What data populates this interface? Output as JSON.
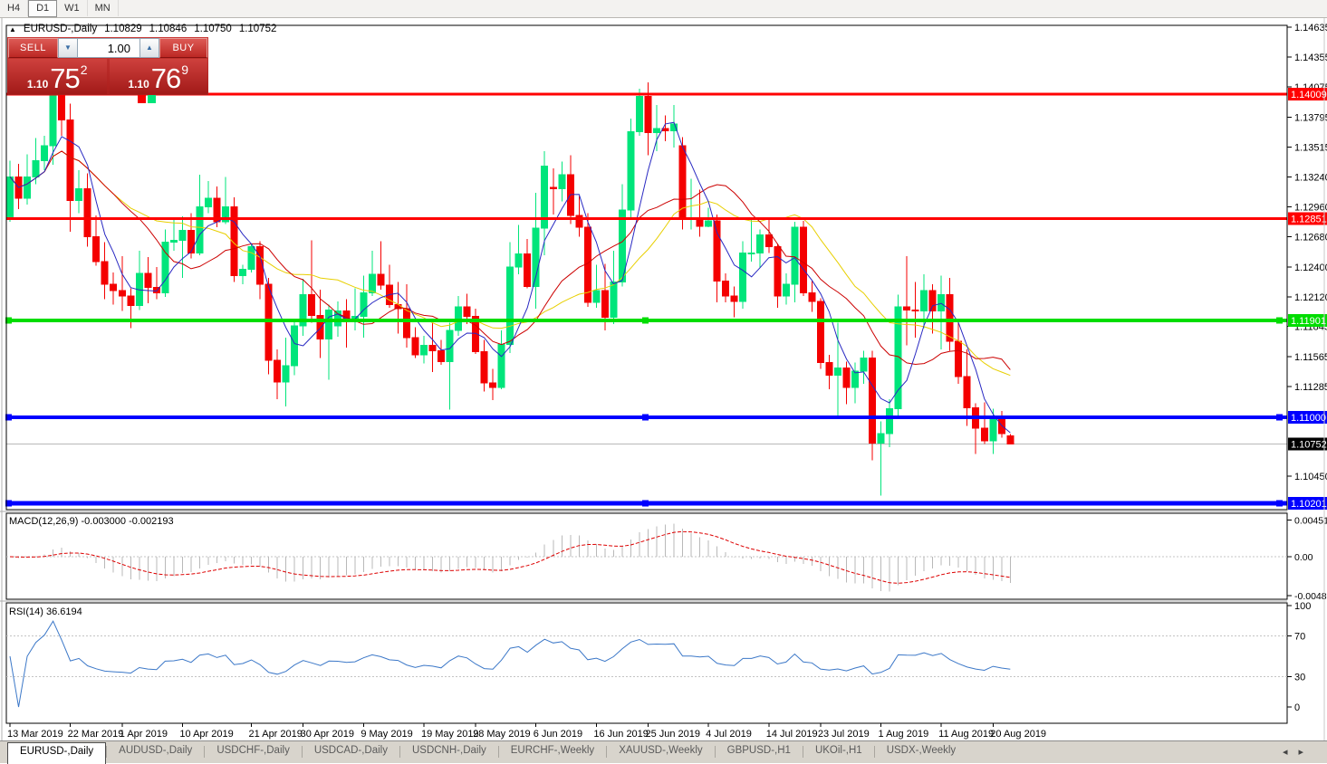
{
  "toolbar": {
    "timeframes": [
      "H4",
      "D1",
      "W1",
      "MN"
    ],
    "active_timeframe": "D1"
  },
  "info_line": {
    "collapse_icon": "▲",
    "symbol": "EURUSD-,Daily",
    "open": "1.10829",
    "high": "1.10846",
    "low": "1.10750",
    "close": "1.10752"
  },
  "trade_widget": {
    "sell_label": "SELL",
    "buy_label": "BUY",
    "volume": "1.00",
    "spin_down_icon": "▼",
    "spin_up_icon": "▲",
    "sell_price": {
      "prefix": "1.10",
      "big": "75",
      "sup": "2"
    },
    "buy_price": {
      "prefix": "1.10",
      "big": "76",
      "sup": "9"
    }
  },
  "indicator_panels": {
    "macd": {
      "title": "MACD(12,26,9)",
      "value_main": "-0.003000",
      "value_signal": "-0.002193",
      "params": {
        "fast": 12,
        "slow": 26,
        "signal": 9
      },
      "scale": [
        {
          "value": 0.004517,
          "label": "0.004517"
        },
        {
          "value": 0,
          "label": "0.00"
        },
        {
          "value": -0.004806,
          "label": "-0.004806"
        }
      ]
    },
    "rsi": {
      "title": "RSI(14)",
      "value": "36.6194",
      "period": 14,
      "levels": [
        70,
        30
      ],
      "scale": [
        {
          "value": 100,
          "label": "100"
        },
        {
          "value": 70,
          "label": "70"
        },
        {
          "value": 30,
          "label": "30"
        },
        {
          "value": 0,
          "label": "0"
        }
      ]
    }
  },
  "tab_bar": {
    "tabs": [
      "EURUSD-,Daily",
      "AUDUSD-,Daily",
      "USDCHF-,Daily",
      "USDCAD-,Daily",
      "USDCNH-,Daily",
      "EURCHF-,Weekly",
      "XAUUSD-,Weekly",
      "GBPUSD-,H1",
      "UKOil-,H1",
      "USDX-,Weekly"
    ],
    "active_tab": "EURUSD-,Daily",
    "scroll_left_icon": "◂",
    "scroll_right_icon": "▸"
  },
  "chart_data": {
    "type": "candlestick",
    "title": "EURUSD-,Daily",
    "y_axis": {
      "min": 1.1014,
      "max": 1.1465,
      "ticks": [
        {
          "value": 1.14635,
          "label": "1.14635"
        },
        {
          "value": 1.14355,
          "label": "1.14355"
        },
        {
          "value": 1.14075,
          "label": "1.14075"
        },
        {
          "value": 1.13795,
          "label": "1.13795"
        },
        {
          "value": 1.13515,
          "label": "1.13515"
        },
        {
          "value": 1.1324,
          "label": "1.13240"
        },
        {
          "value": 1.1296,
          "label": "1.12960"
        },
        {
          "value": 1.1268,
          "label": "1.12680"
        },
        {
          "value": 1.124,
          "label": "1.12400"
        },
        {
          "value": 1.1212,
          "label": "1.12120"
        },
        {
          "value": 1.11845,
          "label": "1.11845"
        },
        {
          "value": 1.11565,
          "label": "1.11565"
        },
        {
          "value": 1.11285,
          "label": "1.11285"
        },
        {
          "value": 1.1045,
          "label": "1.10450"
        }
      ]
    },
    "x_ticks": [
      {
        "i": 0,
        "label": "13 Mar 2019"
      },
      {
        "i": 7,
        "label": "22 Mar 2019"
      },
      {
        "i": 13,
        "label": "1 Apr 2019"
      },
      {
        "i": 20,
        "label": "10 Apr 2019"
      },
      {
        "i": 28,
        "label": "21 Apr 2019"
      },
      {
        "i": 34,
        "label": "30 Apr 2019"
      },
      {
        "i": 41,
        "label": "9 May 2019"
      },
      {
        "i": 48,
        "label": "19 May 2019"
      },
      {
        "i": 54,
        "label": "28 May 2019"
      },
      {
        "i": 61,
        "label": "6 Jun 2019"
      },
      {
        "i": 68,
        "label": "16 Jun 2019"
      },
      {
        "i": 74,
        "label": "25 Jun 2019"
      },
      {
        "i": 81,
        "label": "4 Jul 2019"
      },
      {
        "i": 88,
        "label": "14 Jul 2019"
      },
      {
        "i": 94,
        "label": "23 Jul 2019"
      },
      {
        "i": 101,
        "label": "1 Aug 2019"
      },
      {
        "i": 108,
        "label": "11 Aug 2019"
      },
      {
        "i": 114,
        "label": "20 Aug 2019"
      }
    ],
    "hlines": [
      {
        "price": 1.14009,
        "label": "1.14009",
        "color": "#ff0000",
        "width": 3,
        "handles": false
      },
      {
        "price": 1.12851,
        "label": "1.12851",
        "color": "#ff0000",
        "width": 3,
        "handles": false
      },
      {
        "price": 1.11901,
        "label": "1.11901",
        "color": "#00dd00",
        "width": 4,
        "handles": true
      },
      {
        "price": 1.11,
        "label": "1.11000",
        "color": "#0000ff",
        "width": 4,
        "handles": true
      },
      {
        "price": 1.10201,
        "label": "1.10201",
        "color": "#0000ff",
        "width": 5,
        "handles": true
      }
    ],
    "current_price": {
      "value": 1.10752,
      "label": "1.10752"
    },
    "moving_averages": [
      {
        "name": "slow",
        "period": 21,
        "color": "#e8cf00"
      },
      {
        "name": "medium",
        "period": 13,
        "color": "#cc0000"
      },
      {
        "name": "fast",
        "period": 5,
        "color": "#2828c2"
      }
    ],
    "colors": {
      "up": "#00e57b",
      "down": "#f40000",
      "macd_histogram": "#b9b9b9",
      "macd_signal": "#dd0000",
      "rsi_line": "#3c78c8",
      "current_price_line": "#b8b8b8",
      "grid_dash": "#c4c4c4"
    },
    "macd_range": {
      "max": 0.0048,
      "min": -0.0048
    },
    "rsi_range": {
      "max": 100,
      "min": 0
    },
    "candles": [
      [
        1.1285,
        1.1339,
        1.1282,
        1.1324
      ],
      [
        1.1324,
        1.1336,
        1.1294,
        1.1304
      ],
      [
        1.1304,
        1.1345,
        1.1298,
        1.1324
      ],
      [
        1.1324,
        1.136,
        1.1317,
        1.1339
      ],
      [
        1.1339,
        1.1362,
        1.133,
        1.1353
      ],
      [
        1.1353,
        1.1448,
        1.1335,
        1.1414
      ],
      [
        1.1414,
        1.1438,
        1.1362,
        1.1377
      ],
      [
        1.1377,
        1.1392,
        1.1273,
        1.1302
      ],
      [
        1.1302,
        1.133,
        1.129,
        1.1313
      ],
      [
        1.1313,
        1.1327,
        1.1259,
        1.1268
      ],
      [
        1.1268,
        1.1288,
        1.1241,
        1.1245
      ],
      [
        1.1245,
        1.1263,
        1.121,
        1.1224
      ],
      [
        1.1224,
        1.1235,
        1.1205,
        1.1218
      ],
      [
        1.1218,
        1.125,
        1.1199,
        1.1213
      ],
      [
        1.1213,
        1.122,
        1.1183,
        1.1204
      ],
      [
        1.1204,
        1.1255,
        1.12,
        1.1234
      ],
      [
        1.1234,
        1.1249,
        1.1206,
        1.1221
      ],
      [
        1.1221,
        1.124,
        1.121,
        1.1216
      ],
      [
        1.1216,
        1.1275,
        1.1212,
        1.1263
      ],
      [
        1.1263,
        1.1285,
        1.1255,
        1.1265
      ],
      [
        1.1265,
        1.1287,
        1.123,
        1.1274
      ],
      [
        1.1274,
        1.129,
        1.1248,
        1.1253
      ],
      [
        1.1253,
        1.1326,
        1.1251,
        1.1296
      ],
      [
        1.1296,
        1.132,
        1.129,
        1.1304
      ],
      [
        1.1304,
        1.1315,
        1.1277,
        1.1282
      ],
      [
        1.1282,
        1.1324,
        1.128,
        1.1296
      ],
      [
        1.1296,
        1.1305,
        1.1226,
        1.1232
      ],
      [
        1.1232,
        1.1242,
        1.1224,
        1.1238
      ],
      [
        1.1238,
        1.1262,
        1.1235,
        1.1259
      ],
      [
        1.1259,
        1.1264,
        1.121,
        1.1224
      ],
      [
        1.1224,
        1.123,
        1.114,
        1.1153
      ],
      [
        1.1153,
        1.1163,
        1.1117,
        1.1133
      ],
      [
        1.1133,
        1.1174,
        1.111,
        1.1148
      ],
      [
        1.1148,
        1.1191,
        1.1139,
        1.1185
      ],
      [
        1.1185,
        1.1229,
        1.1176,
        1.1214
      ],
      [
        1.1214,
        1.1265,
        1.1188,
        1.1195
      ],
      [
        1.1195,
        1.1219,
        1.1155,
        1.1173
      ],
      [
        1.1173,
        1.1205,
        1.1135,
        1.12
      ],
      [
        1.1185,
        1.1208,
        1.1175,
        1.1199
      ],
      [
        1.1199,
        1.121,
        1.1165,
        1.1191
      ],
      [
        1.1191,
        1.122,
        1.1181,
        1.1194
      ],
      [
        1.1194,
        1.1232,
        1.1174,
        1.1216
      ],
      [
        1.1216,
        1.1255,
        1.1213,
        1.1233
      ],
      [
        1.1233,
        1.1264,
        1.1219,
        1.1223
      ],
      [
        1.1223,
        1.1242,
        1.1202,
        1.1205
      ],
      [
        1.1205,
        1.1226,
        1.1178,
        1.1201
      ],
      [
        1.1201,
        1.1224,
        1.1165,
        1.1174
      ],
      [
        1.1174,
        1.1184,
        1.1155,
        1.1158
      ],
      [
        1.1158,
        1.1176,
        1.115,
        1.1167
      ],
      [
        1.1167,
        1.1188,
        1.1142,
        1.1162
      ],
      [
        1.1162,
        1.1172,
        1.1149,
        1.1152
      ],
      [
        1.1152,
        1.1188,
        1.1107,
        1.1181
      ],
      [
        1.1181,
        1.1213,
        1.1176,
        1.1203
      ],
      [
        1.1203,
        1.1215,
        1.1187,
        1.1194
      ],
      [
        1.1194,
        1.1201,
        1.1159,
        1.1161
      ],
      [
        1.1161,
        1.1172,
        1.1124,
        1.1132
      ],
      [
        1.1132,
        1.1145,
        1.1116,
        1.1128
      ],
      [
        1.1128,
        1.1181,
        1.1126,
        1.1168
      ],
      [
        1.1168,
        1.1263,
        1.116,
        1.124
      ],
      [
        1.124,
        1.1279,
        1.1233,
        1.1252
      ],
      [
        1.1252,
        1.1266,
        1.122,
        1.1222
      ],
      [
        1.1222,
        1.1309,
        1.1201,
        1.1276
      ],
      [
        1.1276,
        1.1348,
        1.1251,
        1.1334
      ],
      [
        1.1314,
        1.1332,
        1.1289,
        1.1313
      ],
      [
        1.1313,
        1.1338,
        1.1301,
        1.1326
      ],
      [
        1.1326,
        1.1344,
        1.128,
        1.1288
      ],
      [
        1.1288,
        1.1306,
        1.1268,
        1.1277
      ],
      [
        1.1277,
        1.129,
        1.1203,
        1.1207
      ],
      [
        1.1207,
        1.1242,
        1.1202,
        1.1218
      ],
      [
        1.1218,
        1.1243,
        1.1181,
        1.1193
      ],
      [
        1.1193,
        1.1255,
        1.1187,
        1.1226
      ],
      [
        1.1226,
        1.1317,
        1.1222,
        1.1293
      ],
      [
        1.1293,
        1.1378,
        1.1285,
        1.1366
      ],
      [
        1.1366,
        1.1406,
        1.1362,
        1.1399
      ],
      [
        1.1399,
        1.1412,
        1.1344,
        1.1365
      ],
      [
        1.1365,
        1.1391,
        1.1348,
        1.1369
      ],
      [
        1.1369,
        1.1381,
        1.1357,
        1.1367
      ],
      [
        1.1367,
        1.1391,
        1.1351,
        1.1373
      ],
      [
        1.1353,
        1.1361,
        1.1275,
        1.1285
      ],
      [
        1.1285,
        1.1322,
        1.1275,
        1.1285
      ],
      [
        1.1285,
        1.1312,
        1.1268,
        1.1278
      ],
      [
        1.1278,
        1.1295,
        1.1277,
        1.1283
      ],
      [
        1.1283,
        1.1289,
        1.1207,
        1.1227
      ],
      [
        1.1227,
        1.1234,
        1.1207,
        1.1213
      ],
      [
        1.1213,
        1.1222,
        1.1193,
        1.1208
      ],
      [
        1.1208,
        1.1264,
        1.1201,
        1.1253
      ],
      [
        1.1253,
        1.1286,
        1.1245,
        1.1253
      ],
      [
        1.1253,
        1.1275,
        1.1239,
        1.127
      ],
      [
        1.127,
        1.1284,
        1.1253,
        1.1259
      ],
      [
        1.1259,
        1.1262,
        1.1202,
        1.1213
      ],
      [
        1.1213,
        1.1234,
        1.1205,
        1.1224
      ],
      [
        1.1224,
        1.1282,
        1.1207,
        1.1277
      ],
      [
        1.1277,
        1.1283,
        1.1213,
        1.1216
      ],
      [
        1.1216,
        1.1227,
        1.1198,
        1.1208
      ],
      [
        1.1208,
        1.1211,
        1.1145,
        1.1151
      ],
      [
        1.1151,
        1.1158,
        1.1126,
        1.1139
      ],
      [
        1.1139,
        1.1188,
        1.1101,
        1.1146
      ],
      [
        1.1146,
        1.1152,
        1.1112,
        1.1128
      ],
      [
        1.1128,
        1.1151,
        1.1113,
        1.1143
      ],
      [
        1.1143,
        1.1162,
        1.1131,
        1.1155
      ],
      [
        1.1155,
        1.1162,
        1.106,
        1.1076
      ],
      [
        1.1076,
        1.1096,
        1.1027,
        1.1085
      ],
      [
        1.1085,
        1.1117,
        1.1072,
        1.1108
      ],
      [
        1.1108,
        1.1214,
        1.1101,
        1.1203
      ],
      [
        1.1203,
        1.125,
        1.1167,
        1.12
      ],
      [
        1.12,
        1.1226,
        1.1174,
        1.1199
      ],
      [
        1.1199,
        1.1233,
        1.1183,
        1.1218
      ],
      [
        1.1218,
        1.1224,
        1.1178,
        1.1199
      ],
      [
        1.1199,
        1.1232,
        1.1163,
        1.1214
      ],
      [
        1.1214,
        1.123,
        1.1162,
        1.1171
      ],
      [
        1.1171,
        1.1192,
        1.1131,
        1.1138
      ],
      [
        1.1138,
        1.1163,
        1.1092,
        1.1109
      ],
      [
        1.1109,
        1.1113,
        1.1066,
        1.109
      ],
      [
        1.109,
        1.1114,
        1.1075,
        1.1078
      ],
      [
        1.1078,
        1.1108,
        1.1066,
        1.11
      ],
      [
        1.11,
        1.1106,
        1.1081,
        1.1085
      ],
      [
        1.10829,
        1.10846,
        1.1075,
        1.10752
      ]
    ]
  }
}
